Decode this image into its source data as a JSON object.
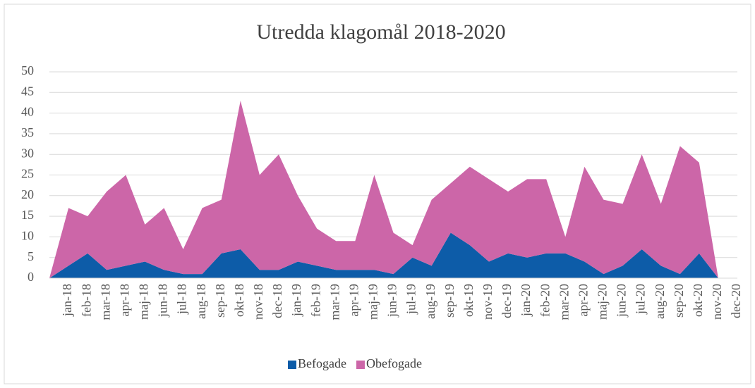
{
  "chart_data": {
    "type": "area",
    "stacked": true,
    "title": "Utredda klagomål 2018-2020",
    "categories": [
      null,
      "jan-18",
      "feb-18",
      "mar-18",
      "apr-18",
      "maj-18",
      "jun-18",
      "jul-18",
      "aug-18",
      "sep-18",
      "okt-18",
      "nov-18",
      "dec-18",
      "jan-19",
      "feb-19",
      "mar-19",
      "apr-19",
      "maj-19",
      "jun-19",
      "jul-19",
      "aug-19",
      "sep-19",
      "okt-19",
      "nov-19",
      "dec-19",
      "jan-20",
      "feb-20",
      "mar-20",
      "apr-20",
      "maj-20",
      "jun-20",
      "jul-20",
      "aug-20",
      "sep-20",
      "okt-20",
      "nov-20",
      "dec-20"
    ],
    "series": [
      {
        "name": "Befogade",
        "color": "#0d5ca8",
        "values": [
          0,
          3,
          6,
          2,
          3,
          4,
          2,
          1,
          1,
          6,
          7,
          2,
          2,
          4,
          3,
          2,
          2,
          2,
          1,
          5,
          3,
          11,
          8,
          4,
          6,
          5,
          6,
          6,
          4,
          1,
          3,
          7,
          3,
          1,
          6,
          0,
          0
        ]
      },
      {
        "name": "Obefogade",
        "color": "#cc66a8",
        "values": [
          0,
          14,
          9,
          19,
          22,
          9,
          15,
          6,
          16,
          13,
          36,
          23,
          28,
          16,
          9,
          7,
          7,
          23,
          10,
          3,
          16,
          12,
          19,
          20,
          15,
          19,
          18,
          4,
          23,
          18,
          15,
          23,
          15,
          31,
          22,
          0,
          0
        ]
      }
    ],
    "ylim": [
      0,
      50
    ],
    "yticks": [
      0,
      5,
      10,
      15,
      20,
      25,
      30,
      35,
      40,
      45,
      50
    ],
    "grid": true,
    "legend": "bottom"
  }
}
